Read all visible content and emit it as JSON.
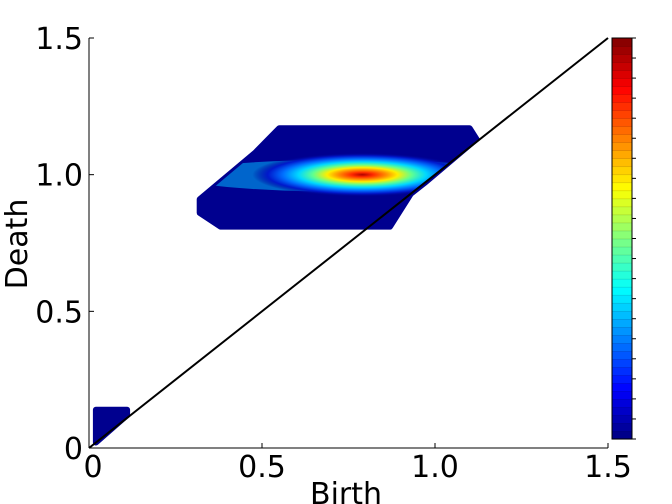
{
  "chart_data": {
    "type": "heatmap",
    "title": "",
    "xlabel": "Birth",
    "ylabel": "Death",
    "xlim": [
      0,
      1.5
    ],
    "ylim": [
      0,
      1.5
    ],
    "x_ticks": [
      0,
      0.5,
      1.0,
      1.5
    ],
    "x_tick_labels": [
      "0",
      "0.5",
      "1.0",
      "1.5"
    ],
    "y_ticks": [
      0,
      0.5,
      1.0,
      1.5
    ],
    "y_tick_labels": [
      "0",
      "0.5",
      "1.0",
      "1.5"
    ],
    "diagonal": {
      "from": [
        0,
        0
      ],
      "to": [
        1.5,
        1.5
      ],
      "color": "#000000"
    },
    "colormap": "jet",
    "colorbar": {
      "placement": "right",
      "steps": 50,
      "labels": []
    },
    "regions": [
      {
        "name": "upper-band",
        "polygon": [
          [
            0.55,
            1.17
          ],
          [
            1.1,
            1.17
          ],
          [
            1.12,
            1.13
          ],
          [
            0.97,
            0.97
          ],
          [
            0.93,
            0.93
          ],
          [
            0.87,
            0.81
          ],
          [
            0.38,
            0.81
          ],
          [
            0.32,
            0.86
          ],
          [
            0.32,
            0.91
          ],
          [
            0.48,
            1.08
          ]
        ],
        "density_peak": [
          0.79,
          1.0
        ],
        "peak_color": "#d81010"
      },
      {
        "name": "lower-corner",
        "polygon": [
          [
            0.02,
            0.02
          ],
          [
            0.02,
            0.14
          ],
          [
            0.11,
            0.14
          ],
          [
            0.11,
            0.12
          ]
        ],
        "peak_color": "#00007f"
      }
    ]
  }
}
